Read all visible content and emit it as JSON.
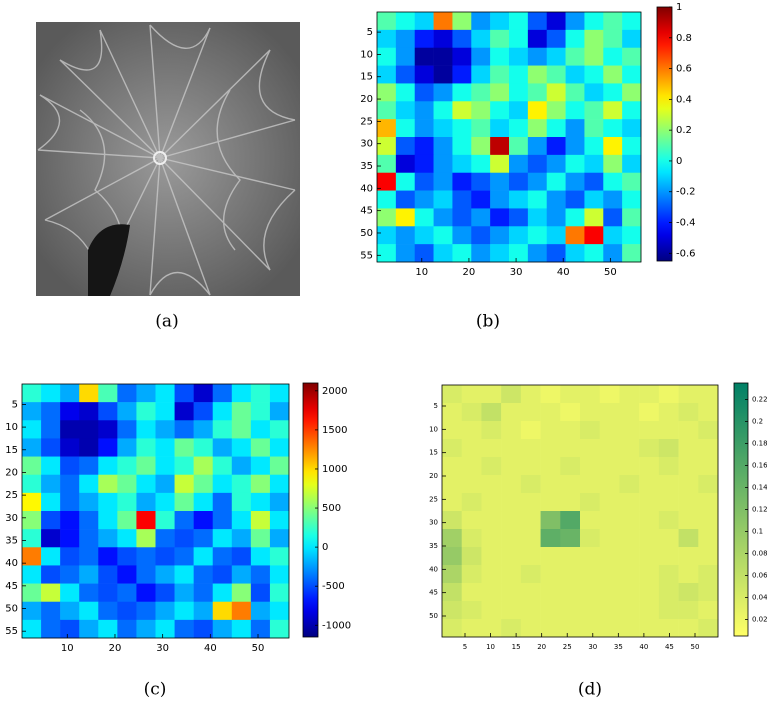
{
  "chart_data": [
    {
      "type": "image",
      "caption": "(a)"
    },
    {
      "type": "heatmap",
      "caption": "(b)",
      "colormap": "jet",
      "xlim": [
        0.5,
        56.5
      ],
      "ylim": [
        0.5,
        56.5
      ],
      "xticks": [
        10,
        20,
        30,
        40,
        50
      ],
      "yticks": [
        5,
        10,
        15,
        20,
        25,
        30,
        35,
        40,
        45,
        50,
        55
      ],
      "clim": [
        -0.65,
        1
      ],
      "cticks": [
        -0.6,
        -0.4,
        -0.2,
        0,
        0.2,
        0.4,
        0.6,
        0.8,
        1
      ],
      "values": [
        [
          0.1,
          0.0,
          -0.1,
          0.6,
          0.2,
          -0.2,
          -0.1,
          0.0,
          -0.3,
          -0.5,
          -0.2,
          0.0,
          0.1,
          0.0
        ],
        [
          -0.1,
          -0.2,
          -0.4,
          -0.5,
          -0.3,
          -0.1,
          0.1,
          0.0,
          -0.5,
          -0.3,
          0.0,
          0.2,
          0.1,
          -0.1
        ],
        [
          0.0,
          -0.2,
          -0.6,
          -0.6,
          -0.5,
          -0.2,
          0.0,
          -0.1,
          -0.2,
          -0.1,
          0.1,
          0.2,
          0.0,
          0.1
        ],
        [
          -0.1,
          -0.3,
          -0.5,
          -0.6,
          -0.4,
          -0.1,
          0.1,
          0.0,
          0.2,
          0.1,
          -0.1,
          0.0,
          0.2,
          0.0
        ],
        [
          0.2,
          0.0,
          -0.3,
          -0.2,
          0.0,
          0.1,
          0.2,
          0.0,
          0.1,
          0.3,
          0.1,
          -0.1,
          0.0,
          0.2
        ],
        [
          0.1,
          -0.1,
          -0.2,
          0.0,
          0.3,
          0.2,
          0.0,
          -0.1,
          0.4,
          0.2,
          0.0,
          0.1,
          0.3,
          0.0
        ],
        [
          0.5,
          0.0,
          -0.2,
          -0.1,
          0.0,
          0.1,
          -0.1,
          0.0,
          0.2,
          0.0,
          -0.2,
          0.1,
          0.0,
          -0.1
        ],
        [
          0.3,
          -0.3,
          -0.4,
          -0.2,
          0.0,
          0.2,
          0.9,
          0.1,
          -0.2,
          -0.4,
          -0.2,
          0.0,
          0.4,
          0.0
        ],
        [
          0.1,
          -0.5,
          -0.4,
          -0.2,
          -0.1,
          0.0,
          0.3,
          -0.2,
          -0.3,
          -0.2,
          0.0,
          -0.1,
          0.2,
          -0.1
        ],
        [
          0.8,
          0.0,
          -0.3,
          -0.2,
          -0.4,
          -0.3,
          -0.2,
          -0.3,
          -0.2,
          0.0,
          -0.2,
          -0.3,
          0.0,
          0.1
        ],
        [
          0.0,
          -0.3,
          -0.2,
          -0.1,
          -0.3,
          -0.4,
          -0.2,
          -0.1,
          0.0,
          -0.2,
          -0.3,
          -0.1,
          -0.2,
          0.0
        ],
        [
          0.2,
          0.4,
          0.0,
          -0.2,
          -0.3,
          -0.2,
          -0.4,
          -0.3,
          -0.1,
          -0.2,
          0.0,
          0.3,
          -0.3,
          0.1
        ],
        [
          -0.1,
          -0.2,
          -0.1,
          0.0,
          -0.2,
          -0.3,
          -0.2,
          -0.1,
          0.0,
          -0.1,
          0.6,
          0.8,
          -0.1,
          0.0
        ],
        [
          0.0,
          -0.2,
          -0.3,
          -0.1,
          0.0,
          -0.2,
          -0.1,
          0.0,
          -0.2,
          -0.3,
          -0.1,
          0.0,
          -0.2,
          0.1
        ]
      ]
    },
    {
      "type": "heatmap",
      "caption": "(c)",
      "colormap": "jet",
      "xlim": [
        0.5,
        56.5
      ],
      "ylim": [
        0.5,
        56.5
      ],
      "xticks": [
        10,
        20,
        30,
        40,
        50
      ],
      "yticks": [
        5,
        10,
        15,
        20,
        25,
        30,
        35,
        40,
        45,
        50,
        55
      ],
      "clim": [
        -1150,
        2100
      ],
      "cticks": [
        -1000,
        -500,
        0,
        500,
        1000,
        1500,
        2000
      ],
      "values": [
        [
          200,
          0,
          -200,
          1000,
          300,
          -400,
          -200,
          0,
          -500,
          -900,
          -400,
          0,
          200,
          0
        ],
        [
          -200,
          -400,
          -800,
          -900,
          -500,
          -200,
          200,
          0,
          -900,
          -500,
          0,
          400,
          200,
          -200
        ],
        [
          0,
          -400,
          -1000,
          -1000,
          -900,
          -400,
          0,
          -200,
          -400,
          -200,
          200,
          400,
          0,
          200
        ],
        [
          -200,
          -500,
          -900,
          -1000,
          -700,
          -200,
          200,
          0,
          400,
          200,
          -200,
          0,
          400,
          0
        ],
        [
          400,
          0,
          -500,
          -400,
          0,
          200,
          400,
          0,
          200,
          600,
          200,
          -200,
          0,
          400
        ],
        [
          200,
          -200,
          -400,
          0,
          600,
          400,
          0,
          -200,
          700,
          400,
          0,
          200,
          500,
          0
        ],
        [
          900,
          0,
          -400,
          -200,
          0,
          200,
          -200,
          0,
          400,
          0,
          -400,
          200,
          0,
          -200
        ],
        [
          500,
          -500,
          -700,
          -400,
          0,
          400,
          1700,
          200,
          -400,
          -700,
          -400,
          0,
          700,
          0
        ],
        [
          200,
          -900,
          -700,
          -400,
          -200,
          0,
          600,
          -400,
          -500,
          -400,
          0,
          -200,
          400,
          -200
        ],
        [
          1300,
          0,
          -500,
          -400,
          -700,
          -500,
          -400,
          -500,
          -400,
          0,
          -400,
          -500,
          0,
          200
        ],
        [
          0,
          -500,
          -400,
          -200,
          -500,
          -700,
          -400,
          -200,
          0,
          -400,
          -500,
          -200,
          -400,
          0
        ],
        [
          400,
          700,
          0,
          -400,
          -500,
          -400,
          -700,
          -500,
          -200,
          -400,
          0,
          500,
          -500,
          200
        ],
        [
          -200,
          -400,
          -200,
          0,
          -400,
          -500,
          -400,
          -200,
          0,
          -200,
          1000,
          1300,
          -200,
          0
        ],
        [
          0,
          -400,
          -500,
          -200,
          0,
          -400,
          -200,
          0,
          -400,
          -500,
          -200,
          0,
          -400,
          200
        ]
      ]
    },
    {
      "type": "heatmap",
      "caption": "(d)",
      "colormap": "summer_r",
      "xlim": [
        0.5,
        54.5
      ],
      "ylim": [
        0.5,
        54.5
      ],
      "xticks": [
        5,
        10,
        15,
        20,
        25,
        30,
        35,
        40,
        45,
        50
      ],
      "yticks": [
        5,
        10,
        15,
        20,
        25,
        30,
        35,
        40,
        45,
        50
      ],
      "clim": [
        0.005,
        0.235
      ],
      "cticks": [
        0.02,
        0.04,
        0.06,
        0.08,
        0.1,
        0.12,
        0.14,
        0.16,
        0.18,
        0.2,
        0.22
      ],
      "values": [
        [
          0.04,
          0.03,
          0.03,
          0.05,
          0.03,
          0.02,
          0.03,
          0.03,
          0.02,
          0.03,
          0.03,
          0.02,
          0.03,
          0.03
        ],
        [
          0.03,
          0.04,
          0.06,
          0.03,
          0.03,
          0.03,
          0.02,
          0.03,
          0.03,
          0.03,
          0.02,
          0.03,
          0.04,
          0.03
        ],
        [
          0.03,
          0.03,
          0.04,
          0.03,
          0.02,
          0.03,
          0.03,
          0.04,
          0.03,
          0.03,
          0.03,
          0.03,
          0.03,
          0.04
        ],
        [
          0.04,
          0.03,
          0.03,
          0.03,
          0.03,
          0.03,
          0.03,
          0.03,
          0.03,
          0.03,
          0.04,
          0.05,
          0.03,
          0.03
        ],
        [
          0.03,
          0.03,
          0.04,
          0.03,
          0.03,
          0.03,
          0.04,
          0.03,
          0.03,
          0.03,
          0.03,
          0.04,
          0.03,
          0.03
        ],
        [
          0.03,
          0.03,
          0.03,
          0.03,
          0.04,
          0.03,
          0.03,
          0.03,
          0.03,
          0.04,
          0.03,
          0.03,
          0.03,
          0.04
        ],
        [
          0.03,
          0.04,
          0.03,
          0.03,
          0.03,
          0.03,
          0.03,
          0.04,
          0.03,
          0.03,
          0.03,
          0.03,
          0.03,
          0.03
        ],
        [
          0.05,
          0.03,
          0.03,
          0.03,
          0.03,
          0.12,
          0.16,
          0.03,
          0.03,
          0.03,
          0.03,
          0.04,
          0.03,
          0.03
        ],
        [
          0.09,
          0.04,
          0.03,
          0.03,
          0.03,
          0.15,
          0.14,
          0.04,
          0.03,
          0.03,
          0.03,
          0.03,
          0.06,
          0.03
        ],
        [
          0.1,
          0.05,
          0.03,
          0.03,
          0.03,
          0.03,
          0.03,
          0.03,
          0.03,
          0.03,
          0.03,
          0.03,
          0.03,
          0.03
        ],
        [
          0.08,
          0.04,
          0.03,
          0.03,
          0.04,
          0.03,
          0.03,
          0.03,
          0.03,
          0.03,
          0.03,
          0.04,
          0.03,
          0.04
        ],
        [
          0.06,
          0.03,
          0.03,
          0.03,
          0.03,
          0.03,
          0.03,
          0.03,
          0.03,
          0.03,
          0.03,
          0.04,
          0.05,
          0.04
        ],
        [
          0.05,
          0.04,
          0.03,
          0.03,
          0.03,
          0.03,
          0.03,
          0.03,
          0.03,
          0.03,
          0.03,
          0.04,
          0.04,
          0.03
        ],
        [
          0.04,
          0.03,
          0.03,
          0.04,
          0.03,
          0.03,
          0.03,
          0.03,
          0.03,
          0.03,
          0.03,
          0.03,
          0.03,
          0.04
        ]
      ]
    }
  ]
}
